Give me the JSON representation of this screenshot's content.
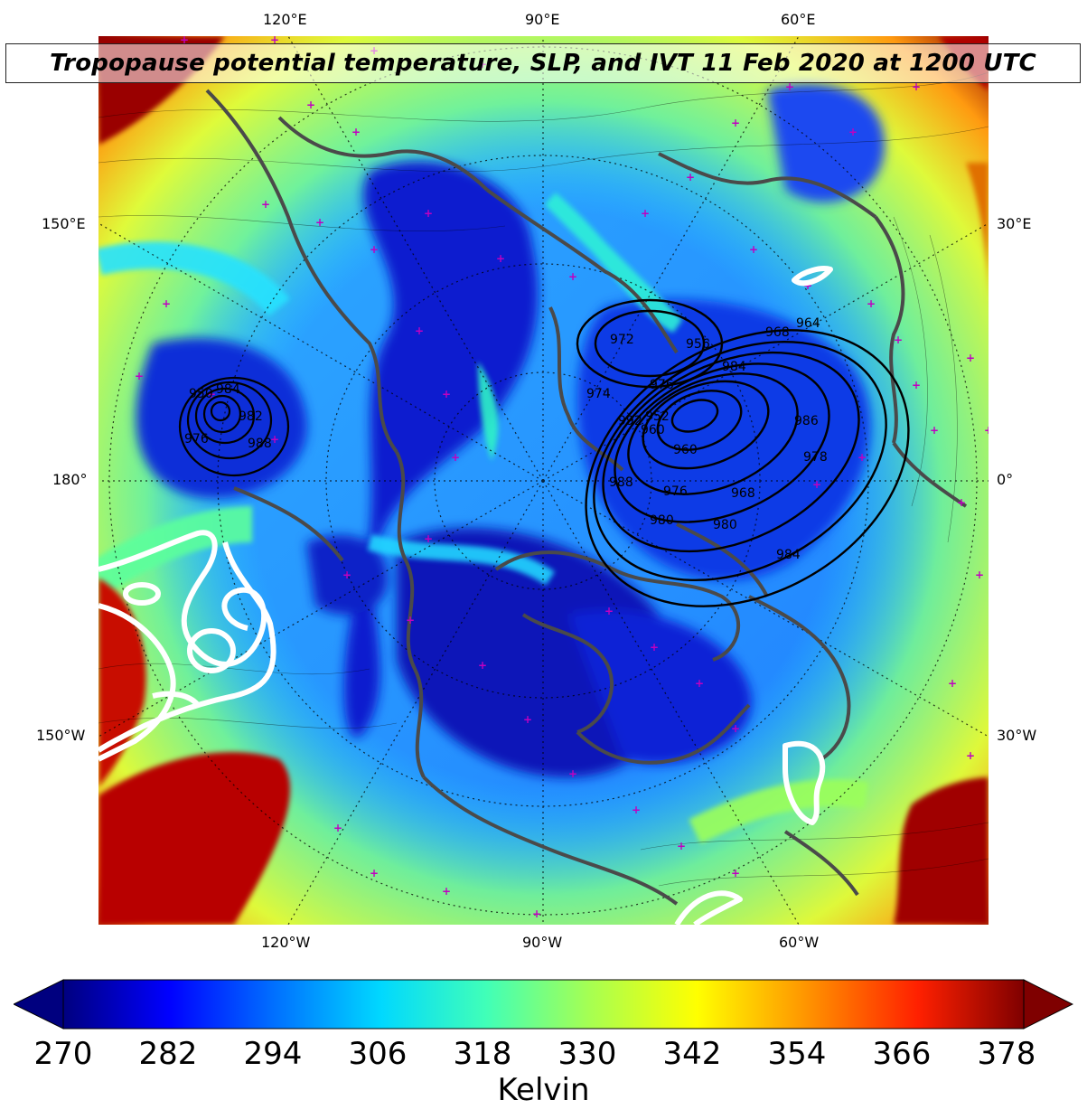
{
  "title": "Tropopause potential temperature, SLP, and IVT 11 Feb 2020 at 1200 UTC",
  "map": {
    "top_lon_labels": [
      "120°E",
      "90°E",
      "60°E"
    ],
    "bottom_lon_labels": [
      "120°W",
      "90°W",
      "60°W"
    ],
    "left_lat_labels": [
      "150°E",
      "180°",
      "150°W"
    ],
    "right_lat_labels": [
      "30°E",
      "0°",
      "30°W"
    ],
    "slp_contour_labels": [
      "964",
      "968",
      "972",
      "976",
      "980",
      "984",
      "956",
      "960",
      "952",
      "988",
      "992",
      "988",
      "976",
      "968",
      "980",
      "984",
      "960",
      "950",
      "974",
      "976",
      "982",
      "984",
      "986",
      "978"
    ]
  },
  "colorbar": {
    "ticks": [
      "270",
      "282",
      "294",
      "306",
      "318",
      "330",
      "342",
      "354",
      "366",
      "378"
    ],
    "label": "Kelvin",
    "colors": [
      "#00007f",
      "#0000ff",
      "#0080ff",
      "#00e0ff",
      "#40ffb8",
      "#9cff5a",
      "#ffff00",
      "#ff9800",
      "#ff2000",
      "#7f0000"
    ]
  }
}
